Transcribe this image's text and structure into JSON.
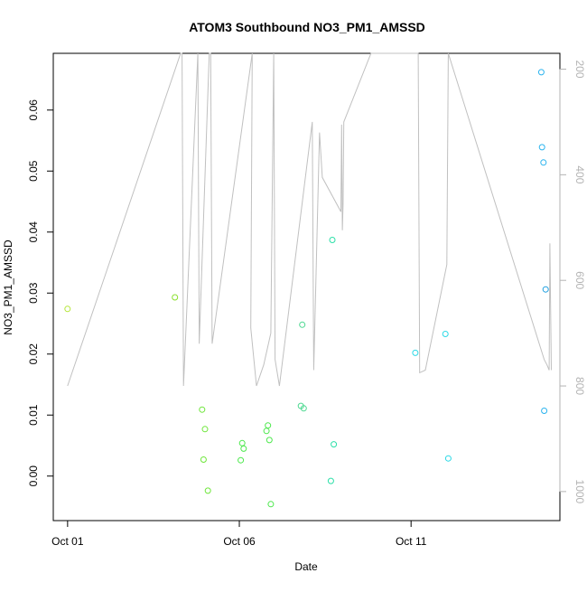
{
  "chart_data": {
    "type": "scatter",
    "title": "ATOM3 Southbound NO3_PM1_AMSSD",
    "xlabel": "Date",
    "ylabel": "NO3_PM1_AMSSD",
    "x_ticks": [
      {
        "date": "2017-10-01",
        "label": "Oct 01"
      },
      {
        "date": "2017-10-06",
        "label": "Oct 06"
      },
      {
        "date": "2017-10-11",
        "label": "Oct 11"
      }
    ],
    "xlim": [
      "2016-09-30T14:00",
      "2016-10-15T08:00"
    ],
    "ylim": [
      -0.0073,
      0.0693
    ],
    "y_ticks": [
      {
        "value": 0.0,
        "label": "0.00"
      },
      {
        "value": 0.01,
        "label": "0.01"
      },
      {
        "value": 0.02,
        "label": "0.02"
      },
      {
        "value": 0.03,
        "label": "0.03"
      },
      {
        "value": 0.04,
        "label": "0.04"
      },
      {
        "value": 0.05,
        "label": "0.05"
      },
      {
        "value": 0.06,
        "label": "0.06"
      }
    ],
    "secondary_axis": {
      "side": "right",
      "reversed": true,
      "ylim": [
        1055,
        170
      ],
      "ticks": [
        {
          "value": 200,
          "label": "200"
        },
        {
          "value": 400,
          "label": "400"
        },
        {
          "value": 600,
          "label": "600"
        },
        {
          "value": 800,
          "label": "800"
        },
        {
          "value": 1000,
          "label": "1000"
        }
      ],
      "line_color": "#c0c0c0",
      "line": [
        {
          "t": "2016-10-01T00:00",
          "v": 800
        },
        {
          "t": "2016-10-04T07:00",
          "v": 170
        },
        {
          "t": "2016-10-04T08:00",
          "v": 170
        },
        {
          "t": "2016-10-04T09:00",
          "v": 800
        },
        {
          "t": "2016-10-04T19:00",
          "v": 170
        },
        {
          "t": "2016-10-04T20:00",
          "v": 720
        },
        {
          "t": "2016-10-05T03:00",
          "v": 170
        },
        {
          "t": "2016-10-05T04:00",
          "v": 170
        },
        {
          "t": "2016-10-05T05:00",
          "v": 720
        },
        {
          "t": "2016-10-06T09:00",
          "v": 170
        },
        {
          "t": "2016-10-06T08:00",
          "v": 690
        },
        {
          "t": "2016-10-06T12:00",
          "v": 800
        },
        {
          "t": "2016-10-06T17:00",
          "v": 760
        },
        {
          "t": "2016-10-06T22:00",
          "v": 700
        },
        {
          "t": "2016-10-07T00:00",
          "v": 170
        },
        {
          "t": "2016-10-07T01:00",
          "v": 750
        },
        {
          "t": "2016-10-07T04:00",
          "v": 800
        },
        {
          "t": "2016-10-08T03:00",
          "v": 300
        },
        {
          "t": "2016-10-08T04:00",
          "v": 770
        },
        {
          "t": "2016-10-08T08:00",
          "v": 320
        },
        {
          "t": "2016-10-08T10:00",
          "v": 405
        },
        {
          "t": "2016-10-08T23:00",
          "v": 470
        },
        {
          "t": "2016-10-08T23:30",
          "v": 305
        },
        {
          "t": "2016-10-09T00:00",
          "v": 505
        },
        {
          "t": "2016-10-09T00:30",
          "v": 455
        },
        {
          "t": "2016-10-09T01:00",
          "v": 300
        },
        {
          "t": "2016-10-09T20:00",
          "v": 170
        },
        {
          "t": "2016-10-09T22:00",
          "v": 170
        },
        {
          "t": "2016-10-10T21:00",
          "v": 170
        },
        {
          "t": "2016-10-11T05:00",
          "v": 170
        },
        {
          "t": "2016-10-11T06:00",
          "v": 775
        },
        {
          "t": "2016-10-11T10:00",
          "v": 770
        },
        {
          "t": "2016-10-12T01:00",
          "v": 570
        },
        {
          "t": "2016-10-12T02:00",
          "v": 170
        },
        {
          "t": "2016-10-14T21:00",
          "v": 750
        },
        {
          "t": "2016-10-14T23:00",
          "v": 760
        },
        {
          "t": "2016-10-15T00:30",
          "v": 770
        },
        {
          "t": "2016-10-15T01:00",
          "v": 530
        },
        {
          "t": "2016-10-15T02:00",
          "v": 770
        }
      ]
    },
    "series": [
      {
        "marker": "open-circle",
        "points": [
          {
            "t": "2016-10-01T00:00",
            "y": 0.0274,
            "color": "#b5e63a"
          },
          {
            "t": "2016-10-04T03:00",
            "y": 0.0293,
            "color": "#8ae02c"
          },
          {
            "t": "2016-10-04T22:00",
            "y": 0.0109,
            "color": "#6ee63a"
          },
          {
            "t": "2016-10-04T23:00",
            "y": 0.0027,
            "color": "#6ee63a"
          },
          {
            "t": "2016-10-05T00:00",
            "y": 0.0077,
            "color": "#6ee63a"
          },
          {
            "t": "2016-10-05T02:00",
            "y": -0.0024,
            "color": "#6ee63a"
          },
          {
            "t": "2016-10-06T01:00",
            "y": 0.0026,
            "color": "#4ce84c"
          },
          {
            "t": "2016-10-06T02:00",
            "y": 0.0054,
            "color": "#4ce84c"
          },
          {
            "t": "2016-10-06T03:00",
            "y": 0.0045,
            "color": "#4ce84c"
          },
          {
            "t": "2016-10-06T19:00",
            "y": 0.0074,
            "color": "#4ce84c"
          },
          {
            "t": "2016-10-06T20:00",
            "y": 0.0083,
            "color": "#4ce84c"
          },
          {
            "t": "2016-10-06T21:00",
            "y": 0.0059,
            "color": "#4ce84c"
          },
          {
            "t": "2016-10-06T22:00",
            "y": -0.0046,
            "color": "#4ce84c"
          },
          {
            "t": "2016-10-07T19:00",
            "y": 0.0115,
            "color": "#4cd890"
          },
          {
            "t": "2016-10-07T20:00",
            "y": 0.0248,
            "color": "#4cd890"
          },
          {
            "t": "2016-10-07T21:00",
            "y": 0.0111,
            "color": "#4cd890"
          },
          {
            "t": "2016-10-08T16:00",
            "y": -0.0008,
            "color": "#2cdfa8"
          },
          {
            "t": "2016-10-08T17:00",
            "y": 0.0387,
            "color": "#2cdfa8"
          },
          {
            "t": "2016-10-08T18:00",
            "y": 0.0052,
            "color": "#2cdfa8"
          },
          {
            "t": "2016-10-11T03:00",
            "y": 0.0202,
            "color": "#2cd9e6"
          },
          {
            "t": "2016-10-12T00:00",
            "y": 0.0233,
            "color": "#2cd9e6"
          },
          {
            "t": "2016-10-12T02:00",
            "y": 0.0029,
            "color": "#2cd9e6"
          },
          {
            "t": "2016-10-14T19:00",
            "y": 0.0662,
            "color": "#2ab3ee"
          },
          {
            "t": "2016-10-14T19:30",
            "y": 0.0539,
            "color": "#2ab3ee"
          },
          {
            "t": "2016-10-14T20:30",
            "y": 0.0514,
            "color": "#2ab3ee"
          },
          {
            "t": "2016-10-14T21:00",
            "y": 0.0107,
            "color": "#2ab3ee"
          },
          {
            "t": "2016-10-14T22:00",
            "y": 0.0306,
            "color": "#1f9fe0"
          }
        ]
      }
    ]
  }
}
